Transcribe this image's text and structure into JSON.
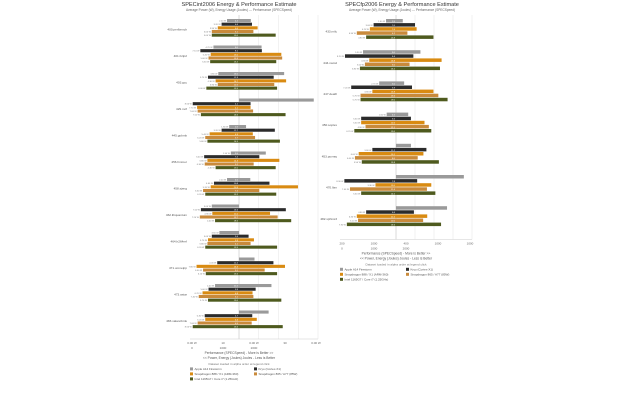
{
  "colors": {
    "apple": "#9a9a9a",
    "qualcomm": "#2b2b2b",
    "dragon_n": "#d98b12",
    "dragon_e": "#c98a3b",
    "intel": "#4e5a1e",
    "axis": "#888888",
    "grid": "#dddddd",
    "text": "#333333"
  },
  "chart_data": [
    {
      "type": "bar",
      "title": "SPECint2006 Energy & Performance Estimate",
      "subtitle": "Average Power (W), Energy Usage (Joules) --- Performance (SPECSpeed)",
      "categories": [
        "400.perlbench",
        "401.bzip2",
        "403.gcc",
        "429.mcf",
        "445.gobmk",
        "456.hmmer",
        "458.sjeng",
        "462.libquantum",
        "464.h264ref",
        "471.omnetpp",
        "473.astar",
        "483.xalancbmk"
      ],
      "energy_axis": {
        "ticks": [
          "0",
          "1000",
          "2000"
        ],
        "label": "<< Power, Energy (Joules) Joules - Less is Better"
      },
      "perf_axis": {
        "ticks": [
          "0",
          "10",
          "20",
          "30",
          "40"
        ],
        "label": "Performance (SPECSpeed) - More is Better >>"
      },
      "bottom_ticks": [
        "0.00 W",
        "",
        "0.00 W",
        "",
        "0.00 W"
      ],
      "series": [
        {
          "key": "apple",
          "energy": [
            2.2,
            4.7,
            3.8,
            0.0,
            1.8,
            1.5,
            2.2,
            5.0,
            3.6,
            0.0,
            4.4,
            0.0
          ],
          "perf": [
            4.2,
            8.0,
            16.0,
            26.5,
            2.5,
            9.5,
            4.0,
            0.0,
            0.0,
            5.5,
            11.5,
            10.5
          ]
        },
        {
          "key": "qualcomm",
          "energy": [
            3.2,
            7.1,
            5.7,
            8.5,
            3.2,
            6.4,
            4.6,
            7.0,
            5.0,
            4.0,
            5.6,
            6.3
          ],
          "perf": [
            4.6,
            8.1,
            12.3,
            4.1,
            12.7,
            7.2,
            10.8,
            16.6,
            3.4,
            12.2,
            5.9,
            4.7
          ]
        },
        {
          "key": "dragon_n",
          "energy": [
            3.9,
            5.2,
            4.3,
            7.7,
            5.4,
            5.8,
            5.2,
            4.9,
            5.7,
            7.8,
            6.7,
            6.2
          ],
          "perf": [
            6.6,
            15.0,
            16.7,
            4.1,
            4.9,
            14.3,
            20.9,
            11.0,
            5.3,
            16.3,
            4.8,
            6.3
          ]
        },
        {
          "key": "dragon_e",
          "energy": [
            5.0,
            5.6,
            3.9,
            7.6,
            6.2,
            6.3,
            6.6,
            7.2,
            5.8,
            6.6,
            7.4,
            7.6
          ],
          "perf": [
            5.1,
            15.3,
            12.5,
            5.0,
            5.7,
            5.2,
            7.2,
            13.7,
            4.1,
            9.1,
            5.1,
            4.5
          ]
        },
        {
          "key": "intel",
          "energy": [
            5.0,
            5.3,
            6.0,
            7.0,
            5.8,
            4.3,
            6.2,
            4.4,
            6.2,
            6.1,
            5.7,
            8.5
          ],
          "perf": [
            13.0,
            13.2,
            13.5,
            16.5,
            14.5,
            13.0,
            13.2,
            18.5,
            13.5,
            13.5,
            15.0,
            15.5
          ]
        }
      ],
      "legend_title": "Dataset loaded in alpha order at legend click",
      "legend": [
        {
          "key": "apple",
          "label": "Apple A14 Firestorm"
        },
        {
          "key": "qualcomm",
          "label": "Kryo (Cortex-X1)"
        },
        {
          "key": "dragon_n",
          "label": "Snapdragon 888 / X1 (ARM-360)"
        },
        {
          "key": "dragon_e",
          "label": "Snapdragon 865 / A77 (85W)"
        },
        {
          "key": "intel",
          "label": "Intel 1165G7 / Core i7 (1.25GHz)"
        }
      ]
    },
    {
      "type": "bar",
      "title": "SPECfp2006 Energy & Performance Estimate",
      "subtitle": "Average Power (W), Energy Usage (Joules) --- Performance (SPECSpeed)",
      "categories": [
        "433.milc",
        "444.namd",
        "447.dealII",
        "450.soplex",
        "453.povray",
        "470.lbm",
        "482.sphinx3"
      ],
      "energy_axis": {
        "ticks": [
          "0",
          "1000",
          "2000"
        ],
        "label": "<< Power, Energy (Joules) Joules - Less is Better"
      },
      "perf_axis": {
        "ticks": [
          "0",
          "10",
          "20",
          "30",
          "40"
        ],
        "label": "Performance (SPECSpeed) - More is Better >>"
      },
      "bottom_ticks": [
        "200",
        "1000",
        "400",
        "1000",
        "1000"
      ],
      "series": [
        {
          "key": "apple",
          "energy": [
            1.6,
            5.3,
            2.7,
            1.5,
            0.0,
            0.0,
            0.0
          ],
          "perf": [
            2.5,
            9.0,
            3.0,
            4.5,
            5.5,
            25.0,
            18.8
          ]
        },
        {
          "key": "qualcomm",
          "energy": [
            3.6,
            8.2,
            7.2,
            5.6,
            3.8,
            8.3,
            4.8
          ],
          "perf": [
            7.0,
            6.4,
            5.9,
            5.5,
            11.2,
            7.8,
            6.6
          ]
        },
        {
          "key": "dragon_n",
          "energy": [
            4.2,
            4.3,
            3.8,
            5.6,
            6.0,
            3.3,
            6.3
          ],
          "perf": [
            7.6,
            16.8,
            13.8,
            10.5,
            10.1,
            13.0,
            11.5
          ]
        },
        {
          "key": "dragon_e",
          "energy": [
            6.3,
            5.0,
            5.7,
            4.9,
            6.6,
            7.4,
            6.1
          ],
          "perf": [
            4.2,
            5.0,
            15.6,
            12.1,
            8.0,
            11.4,
            10.0
          ]
        },
        {
          "key": "intel",
          "energy": [
            4.8,
            5.8,
            5.7,
            6.7,
            5.5,
            5.6,
            7.9
          ],
          "perf": [
            13.8,
            16.2,
            19.0,
            13.0,
            15.8,
            14.5,
            16.6
          ]
        }
      ],
      "legend_title": "Dataset loaded in alpha order at legend click",
      "legend": [
        {
          "key": "apple",
          "label": "Apple A14 Firestorm"
        },
        {
          "key": "qualcomm",
          "label": "Kryo (Cortex-X1)"
        },
        {
          "key": "dragon_n",
          "label": "Snapdragon 888 / X1 (ARM-360)"
        },
        {
          "key": "dragon_e",
          "label": "Snapdragon 865 / A77 (85W)"
        },
        {
          "key": "intel",
          "label": "Intel 1165G7 / Core i7 (1.25GHz)"
        }
      ]
    }
  ]
}
